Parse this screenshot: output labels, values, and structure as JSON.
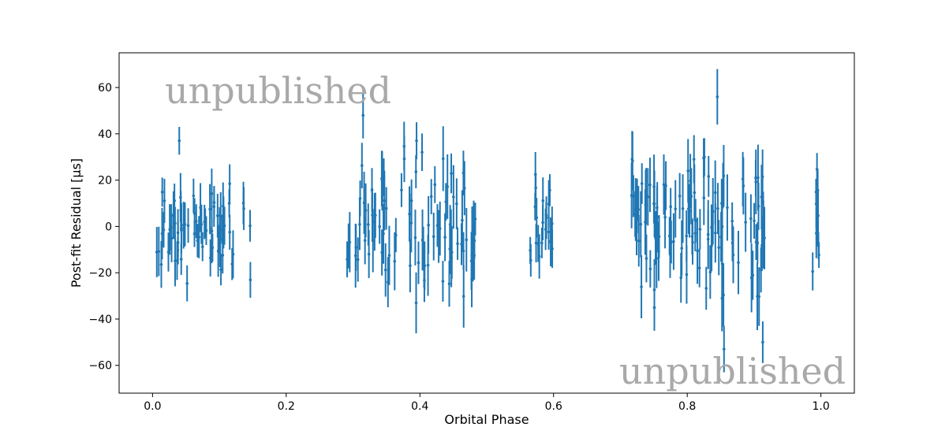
{
  "chart_data": {
    "type": "scatter",
    "title": "",
    "xlabel": "Orbital Phase",
    "ylabel": "Post-fit Residual [μs]",
    "xlim": [
      -0.05,
      1.05
    ],
    "ylim": [
      -72,
      75
    ],
    "xticks": [
      0.0,
      0.2,
      0.4,
      0.6,
      0.8,
      1.0
    ],
    "xtick_labels": [
      "0.0",
      "0.2",
      "0.4",
      "0.6",
      "0.8",
      "1.0"
    ],
    "yticks": [
      -60,
      -40,
      -20,
      0,
      20,
      40,
      60
    ],
    "ytick_labels": [
      "−60",
      "−40",
      "−20",
      "0",
      "20",
      "40",
      "60"
    ],
    "grid": false,
    "legend": "none",
    "series_color": "#1f77b4",
    "error_bars": true,
    "clusters": [
      {
        "x_range": [
          0.0,
          0.15
        ],
        "n_points": 70,
        "y_spread": 12,
        "err": 8
      },
      {
        "x_range": [
          0.29,
          0.485
        ],
        "n_points": 90,
        "y_spread": 16,
        "err": 10
      },
      {
        "x_range": [
          0.565,
          0.6
        ],
        "n_points": 22,
        "y_spread": 10,
        "err": 8
      },
      {
        "x_range": [
          0.715,
          0.92
        ],
        "n_points": 110,
        "y_spread": 17,
        "err": 11
      },
      {
        "x_range": [
          0.985,
          1.0
        ],
        "n_points": 10,
        "y_spread": 14,
        "err": 8
      }
    ],
    "highlighted_points": [
      {
        "x": 0.04,
        "y": 37,
        "err": 6
      },
      {
        "x": 0.315,
        "y": 48,
        "err": 10
      },
      {
        "x": 0.395,
        "y": 37,
        "err": 8
      },
      {
        "x": 0.845,
        "y": 56,
        "err": 12
      },
      {
        "x": 0.855,
        "y": -53,
        "err": 10
      },
      {
        "x": 0.913,
        "y": -50,
        "err": 9
      }
    ]
  },
  "watermarks": [
    "unpublished",
    "unpublished"
  ]
}
